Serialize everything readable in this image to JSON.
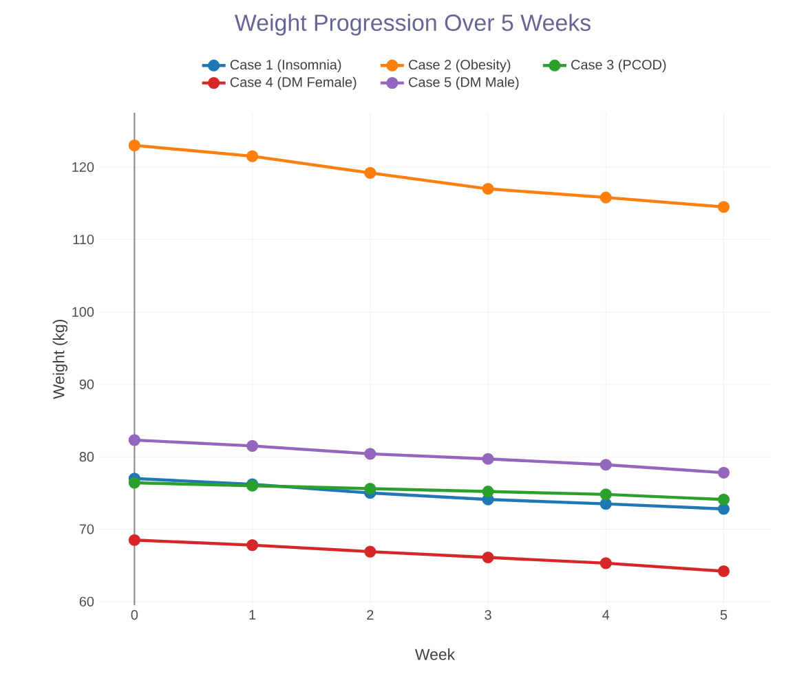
{
  "chart_data": {
    "type": "line",
    "title": "Weight Progression Over 5 Weeks",
    "xlabel": "Week",
    "ylabel": "Weight (kg)",
    "x": [
      0,
      1,
      2,
      3,
      4,
      5
    ],
    "series": [
      {
        "name": "Case 1 (Insomnia)",
        "color": "#1f77b4",
        "values": [
          77.0,
          76.2,
          75.0,
          74.1,
          73.5,
          72.8
        ]
      },
      {
        "name": "Case 2 (Obesity)",
        "color": "#ff7f0e",
        "values": [
          123.0,
          121.5,
          119.2,
          117.0,
          115.8,
          114.5
        ]
      },
      {
        "name": "Case 3 (PCOD)",
        "color": "#2ca02c",
        "values": [
          76.4,
          76.0,
          75.6,
          75.2,
          74.8,
          74.1
        ]
      },
      {
        "name": "Case 4 (DM Female)",
        "color": "#d62728",
        "values": [
          68.5,
          67.8,
          66.9,
          66.1,
          65.3,
          64.2
        ]
      },
      {
        "name": "Case 5 (DM Male)",
        "color": "#9467bd",
        "values": [
          82.3,
          81.5,
          80.4,
          79.7,
          78.9,
          77.8
        ]
      }
    ],
    "xlim": [
      -0.3,
      5.4
    ],
    "ylim": [
      59.5,
      127.5
    ],
    "xticks": [
      0,
      1,
      2,
      3,
      4,
      5
    ],
    "yticks": [
      60,
      70,
      80,
      90,
      100,
      110,
      120
    ],
    "ref_lines": [
      {
        "axis": "x",
        "value": 0,
        "color": "#888888"
      }
    ],
    "grid": true,
    "legend": "top",
    "marker": "circle",
    "line_style": "solid"
  }
}
